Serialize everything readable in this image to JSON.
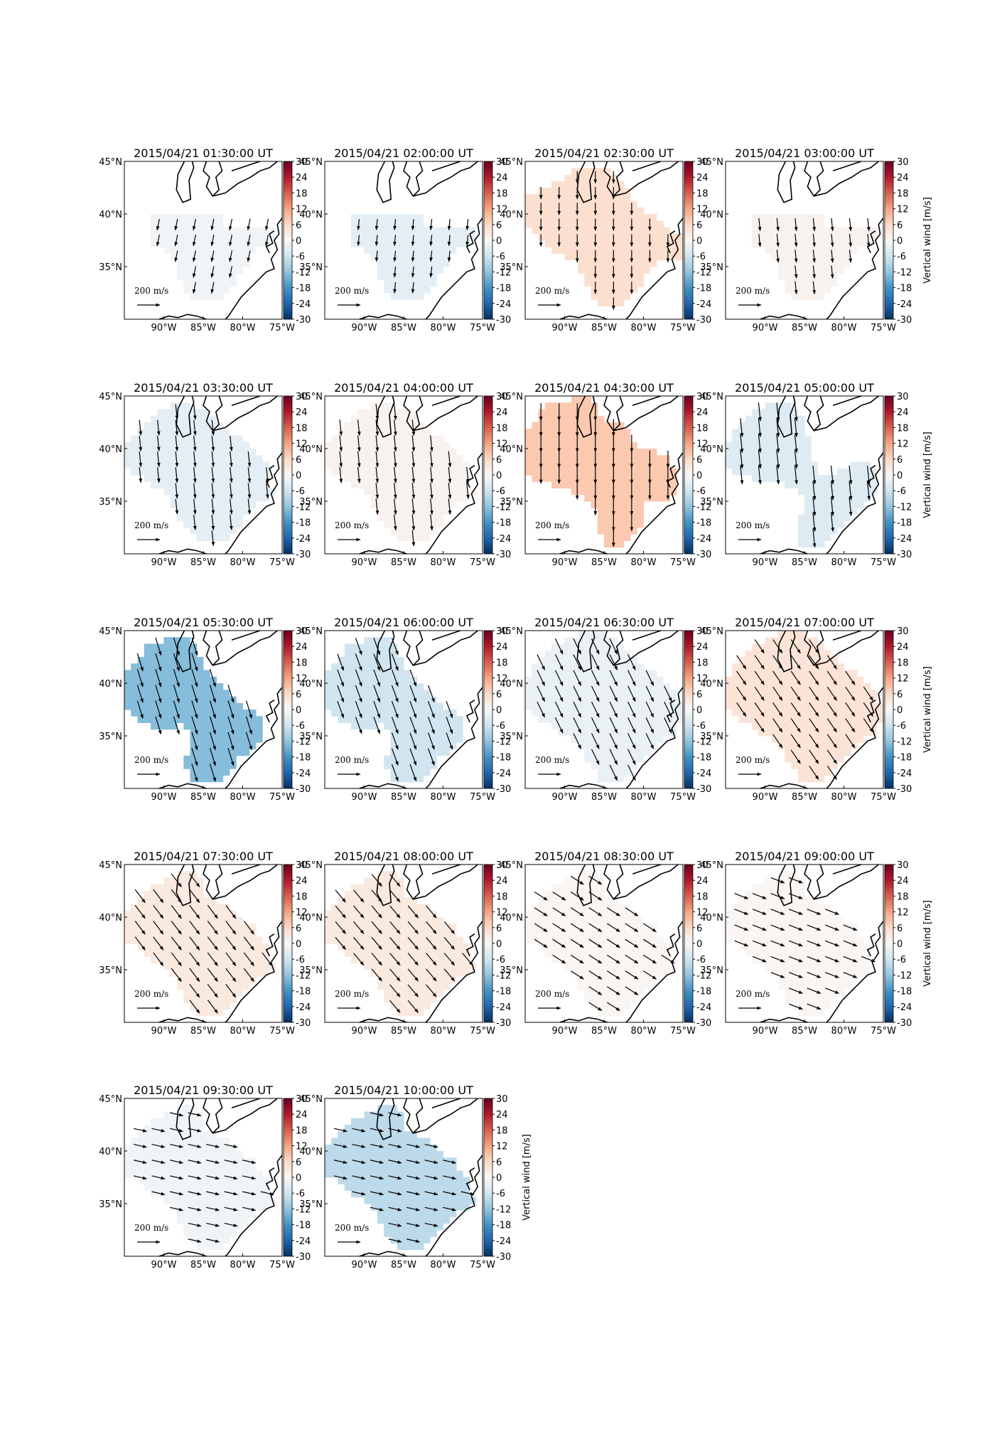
{
  "chart_data": {
    "type": "heatmap",
    "layout": {
      "rows": 5,
      "cols": 4
    },
    "map_extent": {
      "lon": [
        -95,
        -75
      ],
      "lat": [
        30,
        45
      ]
    },
    "xticks": [
      "90°W",
      "85°W",
      "80°W",
      "75°W"
    ],
    "xtick_values": [
      -90,
      -85,
      -80,
      -75
    ],
    "yticks": [
      "45°N",
      "40°N",
      "35°N"
    ],
    "ytick_values": [
      45,
      40,
      35
    ],
    "colorbar": {
      "ticks": [
        "30",
        "24",
        "18",
        "12",
        "6",
        "0",
        "-6",
        "-12",
        "-18",
        "-24",
        "-30"
      ],
      "range": [
        -30,
        30
      ],
      "label": "Vertical wind [m/s]",
      "colormap": "RdBu_r"
    },
    "scale_arrow_label": "200 m/s",
    "panels": [
      {
        "title": "2015/04/21 01:30:00 UT",
        "value": -1,
        "region": "A",
        "wind_dir": 0.2,
        "wind_len": 0.45
      },
      {
        "title": "2015/04/21 02:00:00 UT",
        "value": -3,
        "region": "A",
        "wind_dir": 0.1,
        "wind_len": 0.4
      },
      {
        "title": "2015/04/21 02:30:00 UT",
        "value": 5,
        "region": "B",
        "wind_dir": 0.0,
        "wind_len": 0.5
      },
      {
        "title": "2015/04/21 03:00:00 UT",
        "value": 1,
        "region": "A",
        "wind_dir": -0.1,
        "wind_len": 0.55
      },
      {
        "title": "2015/04/21 03:30:00 UT",
        "value": -3,
        "region": "C",
        "wind_dir": -0.1,
        "wind_len": 0.75
      },
      {
        "title": "2015/04/21 04:00:00 UT",
        "value": 1,
        "region": "C",
        "wind_dir": -0.1,
        "wind_len": 0.8
      },
      {
        "title": "2015/04/21 04:30:00 UT",
        "value": 8,
        "region": "D",
        "wind_dir": 0.0,
        "wind_len": 0.9
      },
      {
        "title": "2015/04/21 05:00:00 UT",
        "value": -4,
        "region": "E",
        "wind_dir": -0.1,
        "wind_len": 1.0
      },
      {
        "title": "2015/04/21 05:30:00 UT",
        "value": -13,
        "region": "F",
        "wind_dir": -0.3,
        "wind_len": 1.0
      },
      {
        "title": "2015/04/21 06:00:00 UT",
        "value": -6,
        "region": "F",
        "wind_dir": -0.35,
        "wind_len": 0.95
      },
      {
        "title": "2015/04/21 06:30:00 UT",
        "value": -2,
        "region": "G",
        "wind_dir": -0.45,
        "wind_len": 0.9
      },
      {
        "title": "2015/04/21 07:00:00 UT",
        "value": 4,
        "region": "G",
        "wind_dir": -0.6,
        "wind_len": 0.85
      },
      {
        "title": "2015/04/21 07:30:00 UT",
        "value": 3,
        "region": "H",
        "wind_dir": -0.65,
        "wind_len": 0.85
      },
      {
        "title": "2015/04/21 08:00:00 UT",
        "value": 3,
        "region": "H",
        "wind_dir": -0.7,
        "wind_len": 0.8
      },
      {
        "title": "2015/04/21 08:30:00 UT",
        "value": 0.5,
        "region": "H",
        "wind_dir": -1.0,
        "wind_len": 0.75
      },
      {
        "title": "2015/04/21 09:00:00 UT",
        "value": 0.5,
        "region": "H",
        "wind_dir": -1.2,
        "wind_len": 0.7
      },
      {
        "title": "2015/04/21 09:30:00 UT",
        "value": -1,
        "region": "H",
        "wind_dir": -1.35,
        "wind_len": 0.6
      },
      {
        "title": "2015/04/21 10:00:00 UT",
        "value": -8,
        "region": "H",
        "wind_dir": -1.35,
        "wind_len": 0.6
      }
    ],
    "labeled_colorbar_panels": [
      3,
      7,
      11,
      15,
      17
    ]
  }
}
